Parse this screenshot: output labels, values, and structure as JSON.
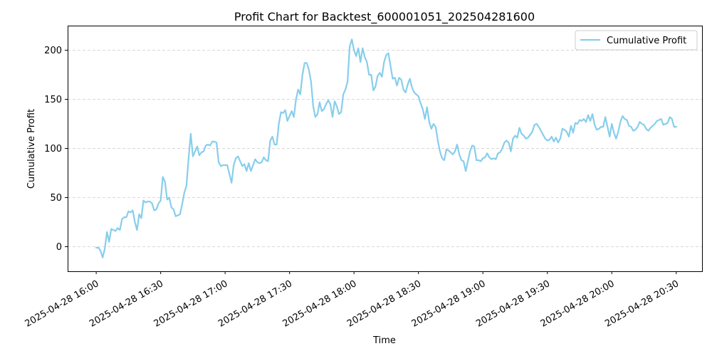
{
  "chart_data": {
    "type": "line",
    "title": "Profit Chart for Backtest_600001051_202504281600",
    "xlabel": "Time",
    "ylabel": "Cumulative Profit",
    "ylim": [
      -25,
      225
    ],
    "yticks": [
      0,
      50,
      100,
      150,
      200
    ],
    "xlim_minutes": [
      -13.3,
      282
    ],
    "xticks": [
      {
        "minutes": 0,
        "label": "2025-04-28 16:00"
      },
      {
        "minutes": 30,
        "label": "2025-04-28 16:30"
      },
      {
        "minutes": 60,
        "label": "2025-04-28 17:00"
      },
      {
        "minutes": 90,
        "label": "2025-04-28 17:30"
      },
      {
        "minutes": 120,
        "label": "2025-04-28 18:00"
      },
      {
        "minutes": 150,
        "label": "2025-04-28 18:30"
      },
      {
        "minutes": 180,
        "label": "2025-04-28 19:00"
      },
      {
        "minutes": 210,
        "label": "2025-04-28 19:30"
      },
      {
        "minutes": 240,
        "label": "2025-04-28 20:00"
      },
      {
        "minutes": 270,
        "label": "2025-04-28 20:30"
      }
    ],
    "grid": {
      "y": true,
      "x": false,
      "style": "dashed",
      "color": "#cccccc"
    },
    "legend": {
      "position": "top-right"
    },
    "series": [
      {
        "name": "Cumulative Profit",
        "color": "#87CEEB",
        "x_minutes": [
          0,
          1,
          2,
          3,
          4,
          5,
          6,
          7,
          8,
          9,
          10,
          11,
          12,
          13,
          14,
          15,
          16,
          17,
          18,
          19,
          20,
          21,
          22,
          23,
          24,
          25,
          26,
          27,
          28,
          29,
          30,
          31,
          32,
          33,
          34,
          35,
          36,
          37,
          38,
          39,
          40,
          41,
          42,
          43,
          44,
          45,
          46,
          47,
          48,
          49,
          50,
          51,
          52,
          53,
          54,
          55,
          56,
          57,
          58,
          59,
          60,
          61,
          62,
          63,
          64,
          65,
          66,
          67,
          68,
          69,
          70,
          71,
          72,
          73,
          74,
          75,
          76,
          77,
          78,
          79,
          80,
          81,
          82,
          83,
          84,
          85,
          86,
          87,
          88,
          89,
          90,
          91,
          92,
          93,
          94,
          95,
          96,
          97,
          98,
          99,
          100,
          101,
          102,
          103,
          104,
          105,
          106,
          107,
          108,
          109,
          110,
          111,
          112,
          113,
          114,
          115,
          116,
          117,
          118,
          119,
          120,
          121,
          122,
          123,
          124,
          125,
          126,
          127,
          128,
          129,
          130,
          131,
          132,
          133,
          134,
          135,
          136,
          137,
          138,
          139,
          140,
          141,
          142,
          143,
          144,
          145,
          146,
          147,
          148,
          149,
          150,
          151,
          152,
          153,
          154,
          155,
          156,
          157,
          158,
          159,
          160,
          161,
          162,
          163,
          164,
          165,
          166,
          167,
          168,
          169,
          170,
          171,
          172,
          173,
          174,
          175,
          176,
          177,
          178,
          179,
          180,
          181,
          182,
          183,
          184,
          185,
          186,
          187,
          188,
          189,
          190,
          191,
          192,
          193,
          194,
          195,
          196,
          197,
          198,
          199,
          200,
          201,
          202,
          203,
          204,
          205,
          206,
          207,
          208,
          209,
          210,
          211,
          212,
          213,
          214,
          215,
          216,
          217,
          218,
          219,
          220,
          221,
          222,
          223,
          224,
          225,
          226,
          227,
          228,
          229,
          230,
          231,
          232,
          233,
          234,
          235,
          236,
          237,
          238,
          239,
          240,
          241,
          242,
          243,
          244,
          245,
          246,
          247,
          248,
          249,
          250,
          251,
          252,
          253,
          254,
          255,
          256,
          257,
          258,
          259,
          260,
          261,
          262,
          263,
          264,
          265,
          266,
          267,
          268,
          269,
          270
        ],
        "values": [
          -1,
          -1,
          -4,
          -11,
          -2,
          15,
          5,
          18,
          17,
          16,
          19,
          17,
          28,
          30,
          30,
          36,
          35,
          37,
          25,
          17,
          33,
          29,
          47,
          45,
          46,
          46,
          44,
          37,
          38,
          44,
          47,
          71,
          66,
          48,
          50,
          40,
          38,
          31,
          32,
          33,
          43,
          55,
          62,
          90,
          115,
          92,
          97,
          102,
          93,
          96,
          97,
          103,
          104,
          103,
          107,
          107,
          106,
          86,
          82,
          83,
          83,
          83,
          74,
          65,
          83,
          90,
          92,
          87,
          82,
          84,
          77,
          85,
          77,
          83,
          89,
          86,
          85,
          86,
          91,
          88,
          87,
          108,
          112,
          104,
          104,
          125,
          137,
          136,
          139,
          128,
          133,
          138,
          132,
          150,
          160,
          155,
          175,
          187,
          187,
          180,
          168,
          143,
          132,
          135,
          147,
          138,
          140,
          145,
          149,
          145,
          132,
          148,
          143,
          135,
          137,
          155,
          160,
          168,
          204,
          211,
          200,
          194,
          202,
          188,
          202,
          193,
          188,
          175,
          175,
          159,
          163,
          174,
          177,
          173,
          188,
          195,
          197,
          184,
          171,
          172,
          164,
          172,
          170,
          160,
          157,
          165,
          171,
          162,
          157,
          155,
          153,
          146,
          140,
          130,
          142,
          127,
          120,
          125,
          122,
          108,
          97,
          90,
          88,
          99,
          98,
          96,
          94,
          97,
          104,
          94,
          88,
          87,
          77,
          87,
          97,
          103,
          102,
          88,
          88,
          87,
          90,
          91,
          95,
          91,
          89,
          90,
          89,
          95,
          96,
          100,
          106,
          108,
          106,
          97,
          110,
          113,
          111,
          121,
          115,
          113,
          110,
          111,
          114,
          117,
          124,
          125,
          122,
          118,
          114,
          110,
          108,
          109,
          112,
          107,
          111,
          106,
          110,
          120,
          119,
          117,
          112,
          123,
          116,
          126,
          125,
          129,
          128,
          130,
          127,
          134,
          128,
          135,
          124,
          119,
          120,
          122,
          122,
          132,
          122,
          112,
          125,
          116,
          110,
          117,
          127,
          133,
          130,
          129,
          123,
          122,
          118,
          119,
          122,
          127,
          125,
          124,
          120,
          118,
          121,
          123,
          125,
          128,
          129,
          130,
          124,
          125,
          126,
          132,
          130,
          122,
          122
        ]
      }
    ]
  }
}
